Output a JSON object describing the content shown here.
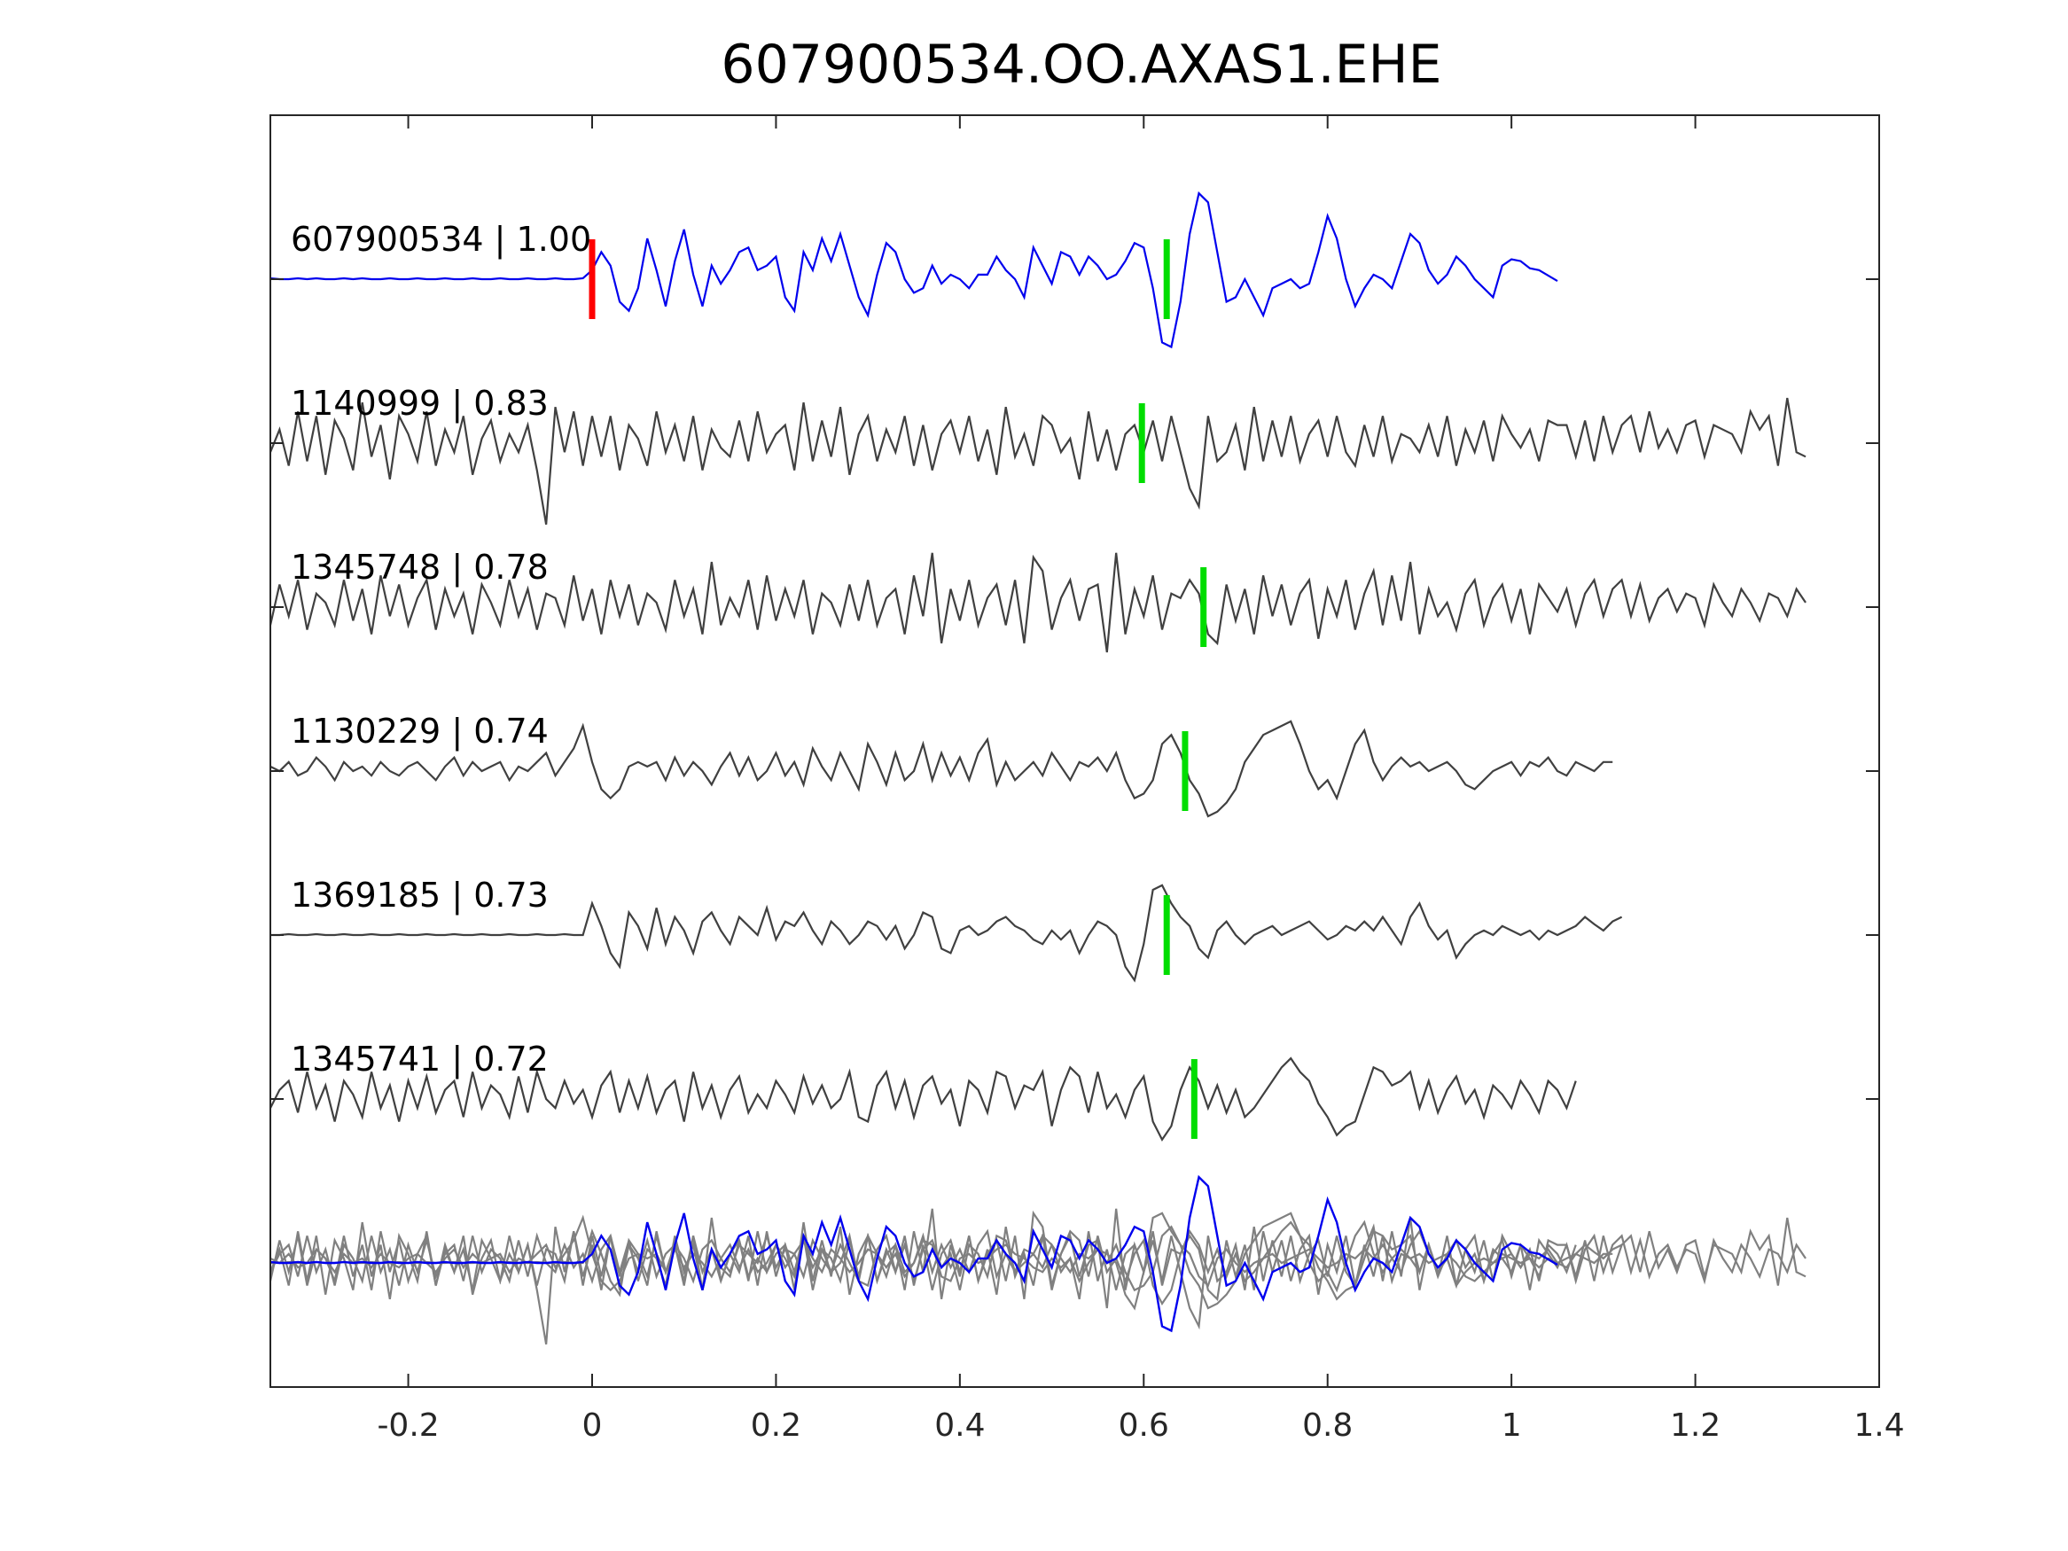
{
  "chart_data": {
    "type": "line",
    "title": "607900534.OO.AXAS1.EHE",
    "xlabel": "",
    "ylabel": "",
    "xlim": [
      -0.35,
      1.4
    ],
    "xticks": [
      -0.2,
      0,
      0.2,
      0.4,
      0.6,
      0.8,
      1,
      1.2,
      1.4
    ],
    "xtick_labels": [
      "-0.2",
      "0",
      "0.2",
      "0.4",
      "0.6",
      "0.8",
      "1",
      "1.2",
      "1.4"
    ],
    "grid": false,
    "legend": "none",
    "sample_step": 0.01,
    "colors": {
      "template": "#0000ee",
      "match": "#404040",
      "overlay": "#808080",
      "origin_pick": "#ff0000",
      "phase_pick": "#00dd00",
      "axes": "#262626"
    },
    "traces": [
      {
        "label": "607900534 | 1.00",
        "role": "template",
        "origin_pick": 0.0,
        "phase_pick": 0.625,
        "samples": [
          0.01,
          0.0,
          0.0,
          0.01,
          0.0,
          0.01,
          0.0,
          0.0,
          0.01,
          0.0,
          0.01,
          0.0,
          0.0,
          0.01,
          0.0,
          0.0,
          0.01,
          0.0,
          0.0,
          0.01,
          0.0,
          0.0,
          0.01,
          0.0,
          0.0,
          0.01,
          0.0,
          0.0,
          0.01,
          0.0,
          0.0,
          0.01,
          0.0,
          0.0,
          0.01,
          0.1,
          0.3,
          0.15,
          -0.25,
          -0.35,
          -0.1,
          0.45,
          0.1,
          -0.3,
          0.2,
          0.55,
          0.05,
          -0.3,
          0.15,
          -0.05,
          0.1,
          0.3,
          0.35,
          0.1,
          0.15,
          0.25,
          -0.2,
          -0.35,
          0.3,
          0.1,
          0.45,
          0.2,
          0.5,
          0.15,
          -0.2,
          -0.4,
          0.05,
          0.4,
          0.3,
          0.0,
          -0.15,
          -0.1,
          0.15,
          -0.05,
          0.05,
          0.0,
          -0.1,
          0.05,
          0.05,
          0.25,
          0.1,
          0.0,
          -0.2,
          0.35,
          0.15,
          -0.05,
          0.3,
          0.25,
          0.05,
          0.25,
          0.15,
          0.0,
          0.05,
          0.2,
          0.4,
          0.35,
          -0.1,
          -0.7,
          -0.75,
          -0.25,
          0.5,
          0.95,
          0.85,
          0.3,
          -0.25,
          -0.2,
          0.0,
          -0.2,
          -0.4,
          -0.1,
          -0.05,
          0.0,
          -0.1,
          -0.05,
          0.3,
          0.7,
          0.45,
          0.0,
          -0.3,
          -0.1,
          0.05,
          0.0,
          -0.1,
          0.2,
          0.5,
          0.4,
          0.1,
          -0.05,
          0.05,
          0.25,
          0.15,
          0.0,
          -0.1,
          -0.2,
          0.15,
          0.22,
          0.2,
          0.12,
          0.1,
          0.04,
          -0.02
        ]
      },
      {
        "label": "1140999 | 0.83",
        "role": "match",
        "phase_pick": 0.598,
        "samples": [
          -0.1,
          0.15,
          -0.25,
          0.35,
          -0.2,
          0.3,
          -0.35,
          0.25,
          0.05,
          -0.3,
          0.45,
          -0.15,
          0.2,
          -0.4,
          0.3,
          0.1,
          -0.2,
          0.35,
          -0.25,
          0.15,
          -0.1,
          0.3,
          -0.35,
          0.05,
          0.25,
          -0.2,
          0.1,
          -0.1,
          0.2,
          -0.3,
          -0.9,
          0.4,
          -0.1,
          0.35,
          -0.25,
          0.3,
          -0.15,
          0.3,
          -0.3,
          0.2,
          0.05,
          -0.25,
          0.35,
          -0.1,
          0.2,
          -0.2,
          0.3,
          -0.3,
          0.15,
          -0.05,
          -0.15,
          0.25,
          -0.2,
          0.35,
          -0.1,
          0.1,
          0.2,
          -0.3,
          0.45,
          -0.2,
          0.25,
          -0.15,
          0.4,
          -0.35,
          0.1,
          0.3,
          -0.2,
          0.15,
          -0.1,
          0.3,
          -0.25,
          0.2,
          -0.3,
          0.1,
          0.25,
          -0.1,
          0.3,
          -0.2,
          0.15,
          -0.35,
          0.4,
          -0.15,
          0.1,
          -0.25,
          0.3,
          0.2,
          -0.1,
          0.05,
          -0.4,
          0.35,
          -0.2,
          0.15,
          -0.3,
          0.1,
          0.2,
          -0.1,
          0.25,
          -0.2,
          0.3,
          -0.1,
          -0.5,
          -0.7,
          0.3,
          -0.2,
          -0.1,
          0.2,
          -0.3,
          0.4,
          -0.2,
          0.25,
          -0.15,
          0.3,
          -0.2,
          0.1,
          0.25,
          -0.15,
          0.3,
          -0.1,
          -0.25,
          0.2,
          -0.15,
          0.3,
          -0.2,
          0.1,
          0.05,
          -0.1,
          0.2,
          -0.15,
          0.3,
          -0.25,
          0.15,
          -0.1,
          0.25,
          -0.2,
          0.3,
          0.1,
          -0.05,
          0.15,
          -0.2,
          0.25,
          0.2,
          0.2,
          -0.15,
          0.25,
          -0.2,
          0.3,
          -0.1,
          0.2,
          0.3,
          -0.1,
          0.35,
          -0.05,
          0.15,
          -0.1,
          0.2,
          0.25,
          -0.15,
          0.2,
          0.15,
          0.1,
          -0.1,
          0.35,
          0.15,
          0.3,
          -0.25,
          0.5,
          -0.1,
          -0.15
        ]
      },
      {
        "label": "1345748 | 0.78",
        "role": "match",
        "phase_pick": 0.665,
        "samples": [
          -0.2,
          0.25,
          -0.1,
          0.3,
          -0.25,
          0.15,
          0.05,
          -0.2,
          0.3,
          -0.15,
          0.2,
          -0.3,
          0.35,
          -0.1,
          0.25,
          -0.2,
          0.1,
          0.3,
          -0.25,
          0.2,
          -0.1,
          0.15,
          -0.3,
          0.25,
          0.05,
          -0.2,
          0.3,
          -0.1,
          0.2,
          -0.25,
          0.15,
          0.1,
          -0.2,
          0.35,
          -0.15,
          0.2,
          -0.3,
          0.3,
          -0.1,
          0.25,
          -0.2,
          0.15,
          0.05,
          -0.25,
          0.3,
          -0.1,
          0.2,
          -0.3,
          0.5,
          -0.2,
          0.1,
          -0.1,
          0.3,
          -0.25,
          0.35,
          -0.15,
          0.2,
          -0.1,
          0.3,
          -0.3,
          0.15,
          0.05,
          -0.2,
          0.25,
          -0.15,
          0.3,
          -0.2,
          0.1,
          0.2,
          -0.3,
          0.35,
          -0.1,
          0.6,
          -0.4,
          0.2,
          -0.15,
          0.3,
          -0.2,
          0.1,
          0.25,
          -0.2,
          0.3,
          -0.4,
          0.55,
          0.4,
          -0.25,
          0.1,
          0.3,
          -0.15,
          0.2,
          0.25,
          -0.5,
          0.6,
          -0.3,
          0.2,
          -0.1,
          0.35,
          -0.25,
          0.15,
          0.1,
          0.3,
          0.15,
          -0.3,
          -0.4,
          0.25,
          -0.15,
          0.2,
          -0.3,
          0.35,
          -0.1,
          0.25,
          -0.2,
          0.15,
          0.3,
          -0.35,
          0.2,
          -0.1,
          0.3,
          -0.25,
          0.15,
          0.4,
          -0.2,
          0.35,
          -0.15,
          0.5,
          -0.3,
          0.2,
          -0.1,
          0.05,
          -0.25,
          0.15,
          0.3,
          -0.2,
          0.1,
          0.25,
          -0.15,
          0.2,
          -0.3,
          0.25,
          0.1,
          -0.05,
          0.2,
          -0.2,
          0.15,
          0.3,
          -0.1,
          0.2,
          0.3,
          -0.1,
          0.25,
          -0.15,
          0.1,
          0.2,
          -0.05,
          0.15,
          0.1,
          -0.2,
          0.25,
          0.05,
          -0.1,
          0.2,
          0.05,
          -0.15,
          0.15,
          0.1,
          -0.1,
          0.2,
          0.05
        ]
      },
      {
        "label": "1130229 | 0.74",
        "role": "match",
        "phase_pick": 0.645,
        "samples": [
          0.05,
          0.0,
          0.1,
          -0.05,
          0.0,
          0.15,
          0.05,
          -0.1,
          0.1,
          0.0,
          0.05,
          -0.05,
          0.1,
          0.0,
          -0.05,
          0.05,
          0.1,
          0.0,
          -0.1,
          0.05,
          0.15,
          -0.05,
          0.1,
          0.0,
          0.05,
          0.1,
          -0.1,
          0.05,
          0.0,
          0.1,
          0.2,
          -0.05,
          0.1,
          0.25,
          0.5,
          0.1,
          -0.2,
          -0.3,
          -0.2,
          0.05,
          0.1,
          0.05,
          0.1,
          -0.1,
          0.15,
          -0.05,
          0.1,
          0.0,
          -0.15,
          0.05,
          0.2,
          -0.05,
          0.15,
          -0.1,
          0.0,
          0.2,
          -0.05,
          0.1,
          -0.15,
          0.25,
          0.05,
          -0.1,
          0.2,
          0.0,
          -0.2,
          0.3,
          0.1,
          -0.15,
          0.2,
          -0.1,
          0.0,
          0.3,
          -0.1,
          0.2,
          -0.05,
          0.15,
          -0.1,
          0.2,
          0.35,
          -0.15,
          0.1,
          -0.1,
          0.0,
          0.1,
          -0.05,
          0.2,
          0.05,
          -0.1,
          0.1,
          0.05,
          0.15,
          0.0,
          0.2,
          -0.1,
          -0.3,
          -0.25,
          -0.1,
          0.3,
          0.4,
          0.2,
          -0.1,
          -0.25,
          -0.5,
          -0.45,
          -0.35,
          -0.2,
          0.1,
          0.25,
          0.4,
          0.45,
          0.5,
          0.55,
          0.3,
          0.0,
          -0.2,
          -0.1,
          -0.3,
          0.0,
          0.3,
          0.45,
          0.1,
          -0.1,
          0.05,
          0.15,
          0.05,
          0.1,
          0.0,
          0.05,
          0.1,
          0.0,
          -0.15,
          -0.2,
          -0.1,
          0.0,
          0.05,
          0.1,
          -0.05,
          0.1,
          0.05,
          0.15,
          0.0,
          -0.05,
          0.1,
          0.05,
          0.0,
          0.1,
          0.1
        ]
      },
      {
        "label": "1369185 | 0.73",
        "role": "match",
        "phase_pick": 0.625,
        "samples": [
          0.0,
          0.0,
          0.01,
          0.0,
          0.0,
          0.01,
          0.0,
          0.0,
          0.01,
          0.0,
          0.0,
          0.01,
          0.0,
          0.0,
          0.01,
          0.0,
          0.0,
          0.01,
          0.0,
          0.0,
          0.01,
          0.0,
          0.0,
          0.01,
          0.0,
          0.0,
          0.01,
          0.0,
          0.0,
          0.01,
          0.0,
          0.0,
          0.01,
          0.0,
          0.0,
          0.35,
          0.1,
          -0.2,
          -0.35,
          0.25,
          0.1,
          -0.15,
          0.3,
          -0.1,
          0.2,
          0.05,
          -0.2,
          0.15,
          0.25,
          0.05,
          -0.1,
          0.2,
          0.1,
          0.0,
          0.3,
          -0.05,
          0.15,
          0.1,
          0.25,
          0.05,
          -0.1,
          0.15,
          0.05,
          -0.1,
          0.0,
          0.15,
          0.1,
          -0.05,
          0.1,
          -0.15,
          0.0,
          0.25,
          0.2,
          -0.15,
          -0.2,
          0.05,
          0.1,
          0.0,
          0.05,
          0.15,
          0.2,
          0.1,
          0.05,
          -0.05,
          -0.1,
          0.05,
          -0.05,
          0.05,
          -0.2,
          0.0,
          0.15,
          0.1,
          0.0,
          -0.35,
          -0.5,
          -0.1,
          0.5,
          0.55,
          0.35,
          0.2,
          0.1,
          -0.15,
          -0.25,
          0.05,
          0.15,
          0.0,
          -0.1,
          0.0,
          0.05,
          0.1,
          0.0,
          0.05,
          0.1,
          0.15,
          0.05,
          -0.05,
          0.0,
          0.1,
          0.05,
          0.15,
          0.05,
          0.2,
          0.05,
          -0.1,
          0.2,
          0.35,
          0.1,
          -0.05,
          0.05,
          -0.25,
          -0.1,
          0.0,
          0.05,
          0.0,
          0.1,
          0.05,
          0.0,
          0.05,
          -0.05,
          0.05,
          0.0,
          0.05,
          0.1,
          0.2,
          0.12,
          0.05,
          0.15,
          0.2
        ]
      },
      {
        "label": "1345741 | 0.72",
        "role": "match",
        "phase_pick": 0.655,
        "samples": [
          -0.1,
          0.1,
          0.2,
          -0.15,
          0.3,
          -0.1,
          0.15,
          -0.25,
          0.2,
          0.05,
          -0.2,
          0.3,
          -0.1,
          0.15,
          -0.25,
          0.2,
          -0.1,
          0.25,
          -0.15,
          0.1,
          0.2,
          -0.2,
          0.3,
          -0.1,
          0.15,
          0.05,
          -0.2,
          0.25,
          -0.15,
          0.3,
          0.0,
          -0.1,
          0.2,
          -0.05,
          0.1,
          -0.2,
          0.15,
          0.3,
          -0.15,
          0.2,
          -0.1,
          0.25,
          -0.15,
          0.1,
          0.2,
          -0.25,
          0.3,
          -0.1,
          0.15,
          -0.2,
          0.1,
          0.25,
          -0.15,
          0.05,
          -0.1,
          0.2,
          0.05,
          -0.15,
          0.25,
          -0.05,
          0.15,
          -0.1,
          0.0,
          0.3,
          -0.2,
          -0.25,
          0.15,
          0.3,
          -0.1,
          0.2,
          -0.2,
          0.15,
          0.25,
          -0.05,
          0.1,
          -0.3,
          0.2,
          0.1,
          -0.15,
          0.3,
          0.25,
          -0.1,
          0.15,
          0.1,
          0.3,
          -0.3,
          0.1,
          0.35,
          0.25,
          -0.15,
          0.3,
          -0.1,
          0.05,
          -0.2,
          0.1,
          0.25,
          -0.25,
          -0.45,
          -0.3,
          0.1,
          0.35,
          0.2,
          -0.1,
          0.15,
          -0.15,
          0.1,
          -0.2,
          -0.1,
          0.05,
          0.2,
          0.35,
          0.45,
          0.3,
          0.2,
          -0.05,
          -0.2,
          -0.4,
          -0.3,
          -0.25,
          0.05,
          0.35,
          0.3,
          0.15,
          0.2,
          0.3,
          -0.1,
          0.2,
          -0.15,
          0.1,
          0.25,
          -0.05,
          0.1,
          -0.2,
          0.15,
          0.05,
          -0.1,
          0.2,
          0.05,
          -0.15,
          0.2,
          0.1,
          -0.1,
          0.2
        ]
      },
      {
        "label": "",
        "role": "overlay"
      }
    ]
  }
}
